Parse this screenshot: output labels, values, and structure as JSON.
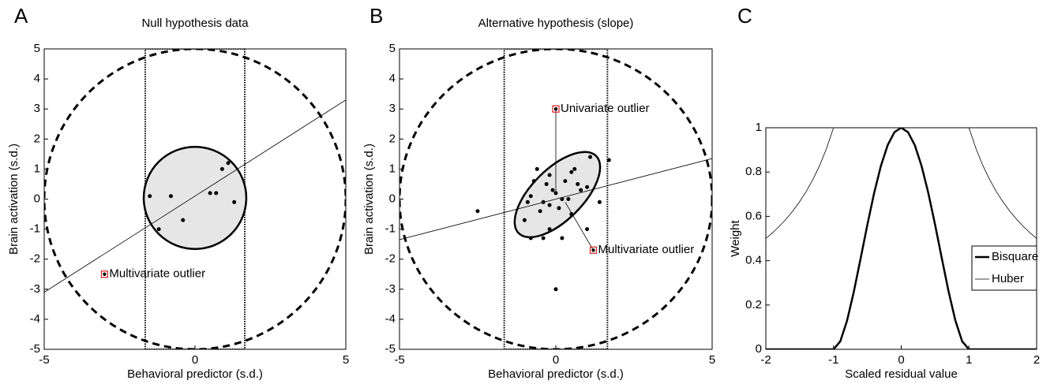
{
  "chart_data": [
    {
      "type": "scatter",
      "panel_label": "A",
      "title": "Null hypothesis data",
      "xlabel": "Behavioral predictor (s.d.)",
      "ylabel": "Brain activation (s.d.)",
      "xlim": [
        -5,
        5
      ],
      "ylim": [
        -5,
        5
      ],
      "xticks": [
        -5,
        0,
        5
      ],
      "yticks": [
        -5,
        -4,
        -3,
        -2,
        -1,
        0,
        1,
        2,
        3,
        4,
        5
      ],
      "color": "#000000",
      "x": [
        -1.5,
        -0.8,
        -1.2,
        -0.4,
        0.5,
        0.7,
        0.9,
        1.1,
        1.3
      ],
      "y": [
        0.1,
        0.1,
        -1.0,
        -0.7,
        0.2,
        0.2,
        1.0,
        1.2,
        -0.1
      ],
      "fit_line": {
        "x": [
          -5,
          5
        ],
        "y": [
          -3.1,
          3.3
        ]
      },
      "ellipse": {
        "cx": 0,
        "cy": 0.04,
        "rx": 1.7,
        "ry": 1.7,
        "angle": 0
      },
      "outer_circle": {
        "cx": 0,
        "cy": 0,
        "r": 5
      },
      "box_region": {
        "x": [
          -1.65,
          1.65
        ],
        "y": [
          -5,
          5
        ]
      },
      "outliers": [
        {
          "x": -3,
          "y": -2.5,
          "label": "Multivariate outlier"
        }
      ]
    },
    {
      "type": "scatter",
      "panel_label": "B",
      "title": "Alternative hypothesis (slope)",
      "xlabel": "Behavioral predictor (s.d.)",
      "ylabel": "Brain activation (s.d.)",
      "xlim": [
        -5,
        5
      ],
      "ylim": [
        -5,
        5
      ],
      "xticks": [
        -5,
        0,
        5
      ],
      "yticks": [
        -5,
        -4,
        -3,
        -2,
        -1,
        0,
        1,
        2,
        3,
        4,
        5
      ],
      "color": "#000000",
      "x": [
        -2.5,
        -1.0,
        -0.9,
        -0.8,
        -0.7,
        -0.6,
        -0.5,
        -0.4,
        -0.3,
        -0.2,
        -0.2,
        -0.1,
        0.0,
        0.1,
        0.2,
        0.3,
        0.4,
        0.5,
        0.5,
        0.6,
        0.7,
        0.8,
        1.0,
        1.0,
        1.1,
        1.4,
        1.7,
        -0.8,
        -0.4,
        0.2,
        0.0,
        -0.2
      ],
      "y": [
        -0.4,
        -0.7,
        -0.1,
        0.1,
        0.6,
        1.0,
        -0.4,
        -0.1,
        0.5,
        -0.2,
        0.8,
        0.3,
        0.2,
        -0.3,
        0.0,
        0.6,
        0.0,
        -0.5,
        0.9,
        1.0,
        0.5,
        0.3,
        -1.0,
        0.4,
        1.4,
        -0.1,
        1.3,
        -1.3,
        -1.3,
        -1.3,
        -3.0,
        -1.0
      ],
      "fit_line": {
        "x": [
          -5,
          5
        ],
        "y": [
          -1.35,
          1.35
        ]
      },
      "ellipse": {
        "cx": 0.05,
        "cy": 0.15,
        "rx": 1.75,
        "ry": 0.85,
        "angle": 45
      },
      "outer_circle": {
        "cx": 0,
        "cy": 0,
        "r": 5
      },
      "box_region": {
        "x": [
          -1.65,
          1.65
        ],
        "y": [
          -5,
          5
        ]
      },
      "outliers": [
        {
          "x": 0,
          "y": 3,
          "label": "Univariate outlier",
          "leader": [
            0,
            0.2
          ]
        },
        {
          "x": 1.2,
          "y": -1.7,
          "label": "Multivariate outlier",
          "leader": [
            0.3,
            -0.1
          ]
        }
      ]
    },
    {
      "type": "line",
      "panel_label": "C",
      "xlabel": "Scaled residual value",
      "ylabel": "Weight",
      "xlim": [
        -2,
        2
      ],
      "ylim": [
        0,
        1
      ],
      "xticks": [
        -2,
        -1,
        0,
        1,
        2
      ],
      "yticks": [
        0,
        0.2,
        0.4,
        0.6,
        0.8,
        1
      ],
      "legend": "lower right",
      "x": [
        -2,
        -1.9,
        -1.8,
        -1.7,
        -1.6,
        -1.5,
        -1.4,
        -1.3,
        -1.2,
        -1.1,
        -1,
        -0.9,
        -0.8,
        -0.7,
        -0.6,
        -0.5,
        -0.4,
        -0.3,
        -0.2,
        -0.1,
        0,
        0.1,
        0.2,
        0.3,
        0.4,
        0.5,
        0.6,
        0.7,
        0.8,
        0.9,
        1,
        1.1,
        1.2,
        1.3,
        1.4,
        1.5,
        1.6,
        1.7,
        1.8,
        1.9,
        2
      ],
      "series": [
        {
          "name": "Bisquare",
          "color": "#000000",
          "width": 2.5,
          "values": [
            0,
            0,
            0,
            0,
            0,
            0,
            0,
            0,
            0,
            0,
            0,
            0.0361,
            0.1296,
            0.2601,
            0.4096,
            0.5625,
            0.7056,
            0.8281,
            0.9216,
            0.9801,
            1,
            0.9801,
            0.9216,
            0.8281,
            0.7056,
            0.5625,
            0.4096,
            0.2601,
            0.1296,
            0.0361,
            0,
            0,
            0,
            0,
            0,
            0,
            0,
            0,
            0,
            0,
            0
          ]
        },
        {
          "name": "Huber",
          "color": "#000000",
          "width": 0.8,
          "values": [
            0.5,
            0.5263,
            0.5556,
            0.5882,
            0.625,
            0.6667,
            0.7143,
            0.7692,
            0.8333,
            0.9091,
            1,
            1,
            1,
            1,
            1,
            1,
            1,
            1,
            1,
            1,
            1,
            1,
            1,
            1,
            1,
            1,
            1,
            1,
            1,
            1,
            1,
            0.9091,
            0.8333,
            0.7692,
            0.7143,
            0.6667,
            0.625,
            0.5882,
            0.5556,
            0.5263,
            0.5
          ]
        }
      ]
    }
  ]
}
